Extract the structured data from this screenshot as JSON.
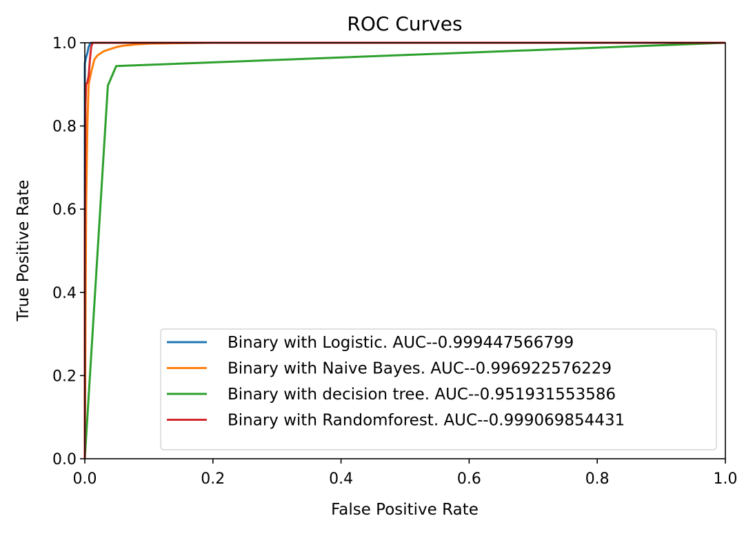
{
  "chart_data": {
    "type": "line",
    "title": "ROC Curves",
    "xlabel": "False Positive Rate",
    "ylabel": "True Positive Rate",
    "xlim": [
      0.0,
      1.0
    ],
    "ylim": [
      0.0,
      1.0
    ],
    "xticks": [
      0.0,
      0.2,
      0.4,
      0.6,
      0.8,
      1.0
    ],
    "xtick_labels": [
      "0.0",
      "0.2",
      "0.4",
      "0.6",
      "0.8",
      "1.0"
    ],
    "yticks": [
      0.0,
      0.2,
      0.4,
      0.6,
      0.8,
      1.0
    ],
    "ytick_labels": [
      "0.0",
      "0.2",
      "0.4",
      "0.6",
      "0.8",
      "1.0"
    ],
    "grid": false,
    "legend_position": "bottom-right",
    "series": [
      {
        "name": "Binary with Logistic. AUC--0.999447566799",
        "color": "#1f77b4",
        "x": [
          0.0,
          0.0,
          0.002,
          0.004,
          0.006,
          0.008,
          0.01,
          0.02,
          0.05,
          0.1,
          0.3,
          0.6,
          1.0
        ],
        "y": [
          0.0,
          0.95,
          0.965,
          0.975,
          0.99,
          0.997,
          1.0,
          1.0,
          1.0,
          1.0,
          1.0,
          1.0,
          1.0
        ]
      },
      {
        "name": "Binary with Naive Bayes. AUC--0.996922576229",
        "color": "#ff7f0e",
        "x": [
          0.0,
          0.001,
          0.002,
          0.004,
          0.006,
          0.01,
          0.015,
          0.02,
          0.03,
          0.04,
          0.05,
          0.06,
          0.08,
          0.1,
          0.14,
          0.2,
          0.4,
          0.7,
          1.0
        ],
        "y": [
          0.0,
          0.3,
          0.6,
          0.8,
          0.9,
          0.93,
          0.96,
          0.97,
          0.98,
          0.985,
          0.99,
          0.993,
          0.996,
          0.998,
          0.999,
          1.0,
          1.0,
          1.0,
          1.0
        ]
      },
      {
        "name": "Binary with decision tree. AUC--0.951931553586",
        "color": "#2ca02c",
        "x": [
          0.0,
          0.036,
          0.049,
          1.0
        ],
        "y": [
          0.0,
          0.897,
          0.944,
          1.0
        ]
      },
      {
        "name": "Binary with Randomforest. AUC--0.999069854431",
        "color": "#d62728",
        "x": [
          0.0,
          0.0,
          0.001,
          0.002,
          0.004,
          0.006,
          0.008,
          0.01,
          0.012,
          0.015,
          0.02,
          0.1,
          0.5,
          1.0
        ],
        "y": [
          0.0,
          0.5,
          0.85,
          0.9,
          0.905,
          0.92,
          0.96,
          0.99,
          1.0,
          1.0,
          1.0,
          1.0,
          1.0,
          1.0
        ]
      }
    ]
  }
}
